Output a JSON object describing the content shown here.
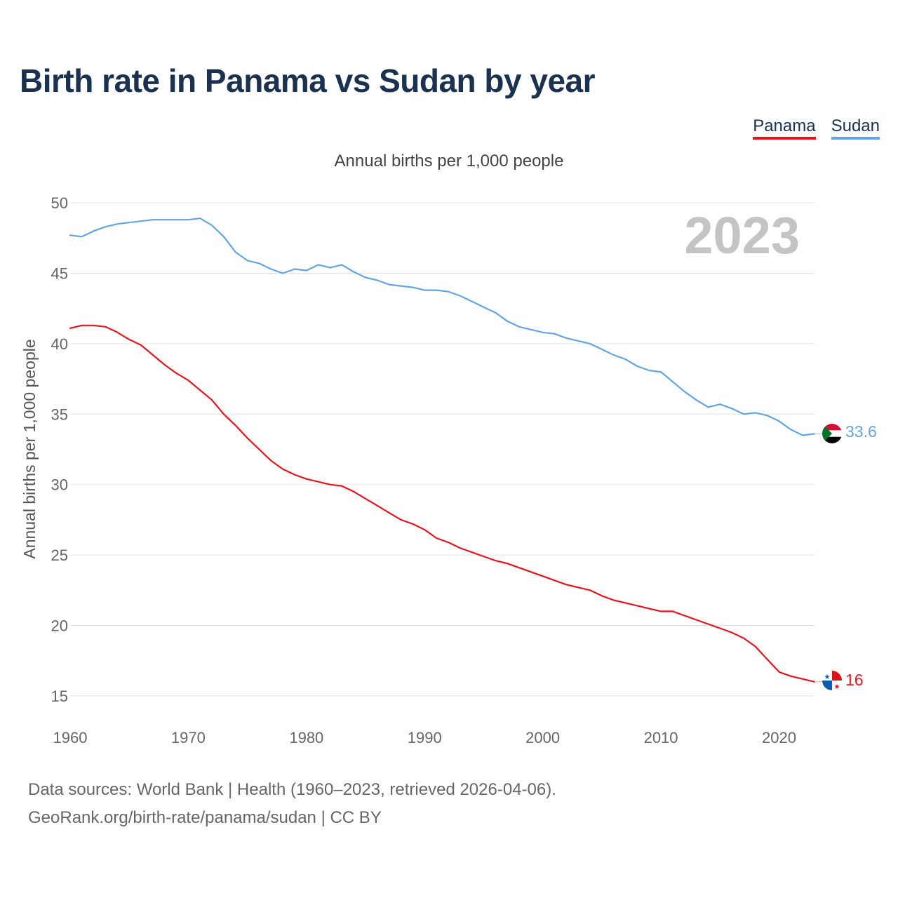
{
  "chart_data": {
    "type": "line",
    "title": "Birth rate in Panama vs Sudan by year",
    "subtitle": "Annual births per 1,000 people",
    "ylabel": "Annual births per 1,000 people",
    "xlabel": "",
    "year_label": "2023",
    "xlim": [
      1960,
      2023
    ],
    "ylim": [
      14,
      51
    ],
    "x_ticks": [
      1960,
      1970,
      1980,
      1990,
      2000,
      2010,
      2020
    ],
    "y_ticks": [
      15,
      20,
      25,
      30,
      35,
      40,
      45,
      50
    ],
    "legend": [
      "Panama",
      "Sudan"
    ],
    "x": [
      1960,
      1961,
      1962,
      1963,
      1964,
      1965,
      1966,
      1967,
      1968,
      1969,
      1970,
      1971,
      1972,
      1973,
      1974,
      1975,
      1976,
      1977,
      1978,
      1979,
      1980,
      1981,
      1982,
      1983,
      1984,
      1985,
      1986,
      1987,
      1988,
      1989,
      1990,
      1991,
      1992,
      1993,
      1994,
      1995,
      1996,
      1997,
      1998,
      1999,
      2000,
      2001,
      2002,
      2003,
      2004,
      2005,
      2006,
      2007,
      2008,
      2009,
      2010,
      2011,
      2012,
      2013,
      2014,
      2015,
      2016,
      2017,
      2018,
      2019,
      2020,
      2021,
      2022,
      2023
    ],
    "series": [
      {
        "name": "Panama",
        "color": "#e8141d",
        "end_label": "16",
        "values": [
          41.1,
          41.3,
          41.3,
          41.2,
          40.8,
          40.3,
          39.9,
          39.2,
          38.5,
          37.9,
          37.4,
          36.7,
          36.0,
          35.0,
          34.2,
          33.3,
          32.5,
          31.7,
          31.1,
          30.7,
          30.4,
          30.2,
          30.0,
          29.9,
          29.5,
          29.0,
          28.5,
          28.0,
          27.5,
          27.2,
          26.8,
          26.2,
          25.9,
          25.5,
          25.2,
          24.9,
          24.6,
          24.4,
          24.1,
          23.8,
          23.5,
          23.2,
          22.9,
          22.7,
          22.5,
          22.1,
          21.8,
          21.6,
          21.4,
          21.2,
          21.0,
          21.0,
          20.7,
          20.4,
          20.1,
          19.8,
          19.5,
          19.1,
          18.5,
          17.6,
          16.7,
          16.4,
          16.2,
          16.0
        ]
      },
      {
        "name": "Sudan",
        "color": "#63a5e3",
        "end_label": "33.6",
        "values": [
          47.7,
          47.6,
          48.0,
          48.3,
          48.5,
          48.6,
          48.7,
          48.8,
          48.8,
          48.8,
          48.8,
          48.9,
          48.4,
          47.6,
          46.5,
          45.9,
          45.7,
          45.3,
          45.0,
          45.3,
          45.2,
          45.6,
          45.4,
          45.6,
          45.1,
          44.7,
          44.5,
          44.2,
          44.1,
          44.0,
          43.8,
          43.8,
          43.7,
          43.4,
          43.0,
          42.6,
          42.2,
          41.6,
          41.2,
          41.0,
          40.8,
          40.7,
          40.4,
          40.2,
          40.0,
          39.6,
          39.2,
          38.9,
          38.4,
          38.1,
          38.0,
          37.3,
          36.6,
          36.0,
          35.5,
          35.7,
          35.4,
          35.0,
          35.1,
          34.9,
          34.5,
          33.9,
          33.5,
          33.6
        ]
      }
    ],
    "source_line1": "Data sources: World Bank | Health (1960–2023, retrieved 2026-04-06).",
    "source_line2": "GeoRank.org/birth-rate/panama/sudan | CC BY"
  }
}
